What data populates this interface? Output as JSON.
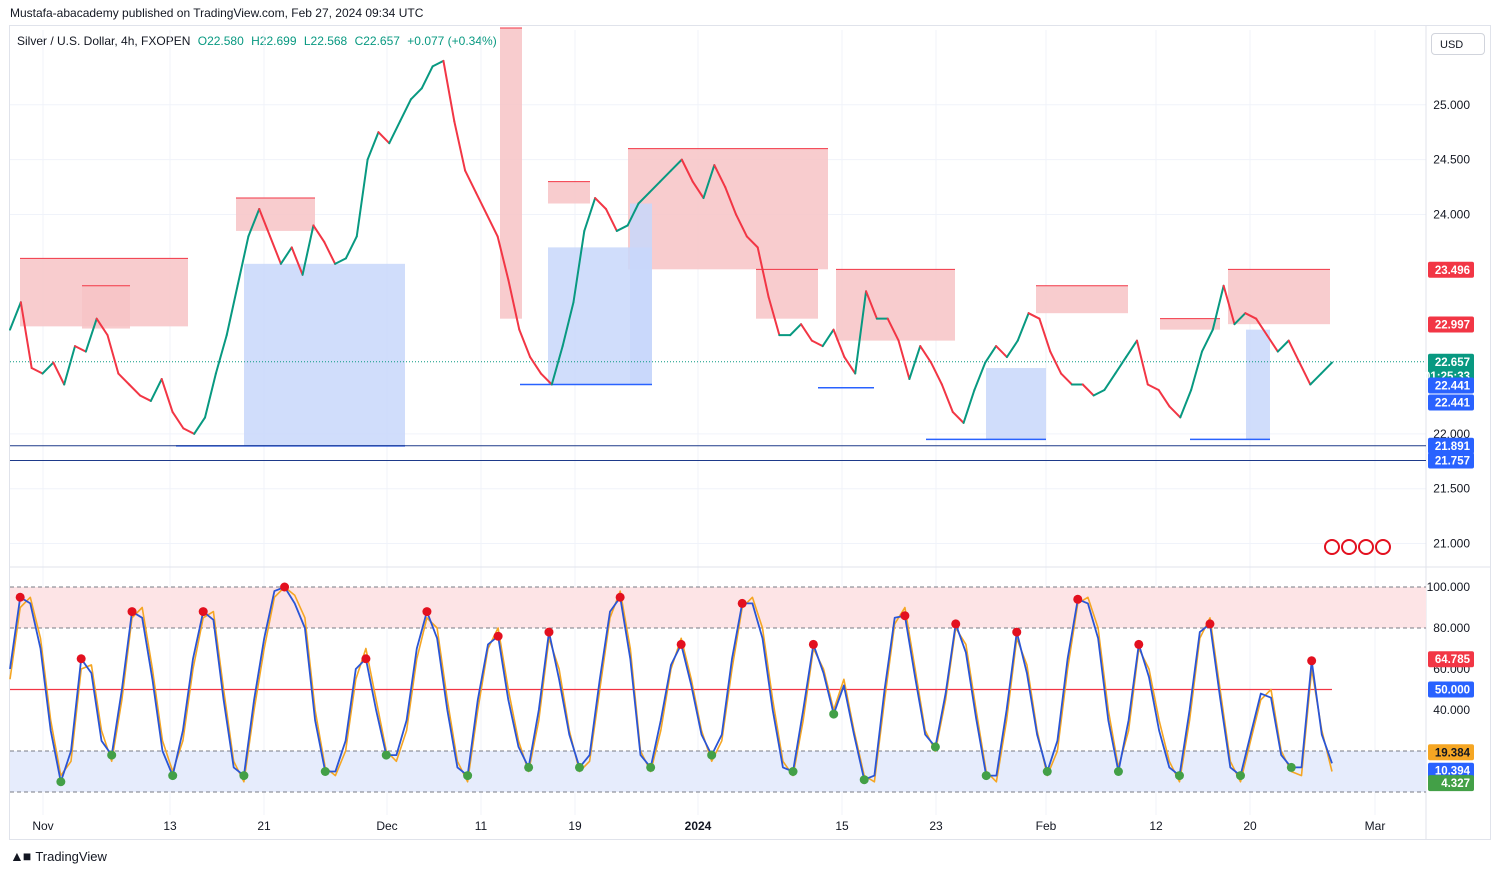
{
  "header": {
    "published": "Mustafa-abacademy published on TradingView.com, Feb 27, 2024 09:34 UTC",
    "symbol": "Silver / U.S. Dollar, 4h, FXOPEN",
    "open": "O22.580",
    "high": "H22.699",
    "low": "L22.568",
    "close": "C22.657",
    "change": "+0.077 (+0.34%)",
    "currency": "USD"
  },
  "footer": {
    "brand": "TradingView"
  },
  "colors": {
    "up": "#089981",
    "down": "#f23645",
    "resistance_fill": "#f7c3c6",
    "support_fill": "#c8d7fa",
    "stoch_k": "#2a55d6",
    "stoch_d": "#f5a623",
    "overbought_dot": "#e3101f",
    "oversold_dot": "#43a047"
  },
  "chart_data": [
    {
      "type": "line",
      "panel": "price",
      "title": "Silver / U.S. Dollar, 4h, FXOPEN",
      "x_tick_labels": [
        "Nov",
        "13",
        "21",
        "Dec",
        "11",
        "19",
        "2024",
        "15",
        "23",
        "Feb",
        "12",
        "20",
        "Mar"
      ],
      "y_tick_labels": [
        "25.000",
        "24.500",
        "24.000",
        "22.000",
        "21.500",
        "21.000"
      ],
      "ylim": [
        20.85,
        25.7
      ],
      "series": [
        {
          "values": [
            22.95,
            23.2,
            22.6,
            22.55,
            22.65,
            22.45,
            22.8,
            22.75,
            23.05,
            22.9,
            22.55,
            22.45,
            22.35,
            22.3,
            22.5,
            22.2,
            22.05,
            22.0,
            22.15,
            22.55,
            22.9,
            23.35,
            23.8,
            24.05,
            23.8,
            23.55,
            23.7,
            23.45,
            23.9,
            23.75,
            23.55,
            23.6,
            23.8,
            24.5,
            24.75,
            24.65,
            24.85,
            25.05,
            25.15,
            25.35,
            25.4,
            24.85,
            24.4,
            24.2,
            24.0,
            23.8,
            23.4,
            22.95,
            22.7,
            22.55,
            22.45,
            22.8,
            23.2,
            23.85,
            24.15,
            24.05,
            23.85,
            23.9,
            24.1,
            24.2,
            24.3,
            24.4,
            24.5,
            24.3,
            24.15,
            24.45,
            24.25,
            24.0,
            23.8,
            23.7,
            23.25,
            22.9,
            22.9,
            23.0,
            22.85,
            22.8,
            22.95,
            22.7,
            22.55,
            23.3,
            23.05,
            23.05,
            22.85,
            22.5,
            22.8,
            22.65,
            22.45,
            22.2,
            22.1,
            22.4,
            22.65,
            22.8,
            22.7,
            22.85,
            23.1,
            23.05,
            22.75,
            22.55,
            22.45,
            22.45,
            22.35,
            22.4,
            22.55,
            22.7,
            22.85,
            22.45,
            22.4,
            22.25,
            22.15,
            22.4,
            22.75,
            22.95,
            23.35,
            23.0,
            23.1,
            23.05,
            22.9,
            22.75,
            22.85,
            22.65,
            22.45,
            22.55,
            22.65
          ]
        }
      ],
      "levels": [
        {
          "label": "23.496",
          "value": 23.496,
          "color": "#f23645"
        },
        {
          "label": "22.997",
          "value": 22.997,
          "color": "#f23645"
        },
        {
          "label": "22.657",
          "value": 22.657,
          "color": "#089981",
          "sub": "01:25:33"
        },
        {
          "label": "22.441",
          "value": 22.441,
          "color": "#2962ff"
        },
        {
          "label": "22.441",
          "value": 22.441,
          "color": "#2962ff",
          "stack": 1
        },
        {
          "label": "21.891",
          "value": 21.891,
          "color": "#2962ff"
        },
        {
          "label": "21.757",
          "value": 21.757,
          "color": "#2962ff"
        }
      ]
    },
    {
      "type": "line",
      "panel": "stochastic",
      "y_tick_labels": [
        "100.000",
        "80.000",
        "60.000",
        "40.000"
      ],
      "ylim": [
        0,
        100
      ],
      "bands": {
        "overbought": 80,
        "mid": 50,
        "oversold": 20
      },
      "series": [
        {
          "values": [
            55,
            90,
            95,
            75,
            35,
            8,
            15,
            60,
            62,
            30,
            15,
            45,
            85,
            90,
            60,
            25,
            10,
            25,
            60,
            85,
            88,
            50,
            15,
            5,
            40,
            70,
            95,
            100,
            96,
            85,
            40,
            12,
            8,
            20,
            55,
            70,
            45,
            20,
            15,
            30,
            65,
            85,
            80,
            45,
            15,
            5,
            40,
            70,
            80,
            50,
            25,
            10,
            35,
            75,
            60,
            30,
            10,
            15,
            50,
            85,
            98,
            70,
            20,
            10,
            30,
            60,
            75,
            55,
            30,
            15,
            25,
            60,
            90,
            95,
            80,
            45,
            15,
            8,
            35,
            70,
            60,
            40,
            55,
            30,
            8,
            5,
            45,
            82,
            90,
            60,
            30,
            20,
            45,
            80,
            72,
            40,
            10,
            5,
            35,
            75,
            62,
            30,
            8,
            20,
            60,
            92,
            95,
            80,
            40,
            12,
            30,
            70,
            60,
            35,
            15,
            5,
            35,
            75,
            85,
            50,
            15,
            5,
            25,
            45,
            50,
            20,
            10,
            8,
            60,
            30,
            10
          ]
        },
        {
          "values": [
            60,
            95,
            92,
            70,
            30,
            5,
            20,
            65,
            58,
            25,
            18,
            50,
            88,
            85,
            55,
            20,
            8,
            30,
            65,
            88,
            84,
            45,
            12,
            8,
            45,
            75,
            98,
            100,
            92,
            80,
            35,
            10,
            10,
            25,
            60,
            65,
            40,
            18,
            18,
            35,
            70,
            88,
            75,
            40,
            12,
            8,
            45,
            72,
            76,
            45,
            22,
            12,
            40,
            78,
            55,
            28,
            12,
            18,
            55,
            88,
            95,
            65,
            18,
            12,
            35,
            62,
            72,
            52,
            28,
            18,
            28,
            65,
            92,
            92,
            75,
            40,
            12,
            10,
            40,
            72,
            58,
            38,
            52,
            28,
            6,
            8,
            50,
            85,
            86,
            56,
            28,
            22,
            48,
            82,
            68,
            36,
            8,
            8,
            40,
            78,
            58,
            28,
            10,
            25,
            65,
            94,
            92,
            75,
            35,
            10,
            35,
            72,
            56,
            30,
            12,
            8,
            40,
            78,
            82,
            46,
            12,
            8,
            28,
            48,
            46,
            18,
            12,
            12,
            64,
            28,
            14
          ]
        }
      ],
      "levels": [
        {
          "label": "64.785",
          "value": 64.785,
          "color": "#f23645"
        },
        {
          "label": "50.000",
          "value": 50.0,
          "color": "#2962ff"
        },
        {
          "label": "19.384",
          "value": 19.384,
          "color": "#f5a623"
        },
        {
          "label": "10.394",
          "value": 10.394,
          "color": "#2962ff"
        },
        {
          "label": "4.327",
          "value": 4.327,
          "color": "#43a047"
        }
      ]
    }
  ]
}
